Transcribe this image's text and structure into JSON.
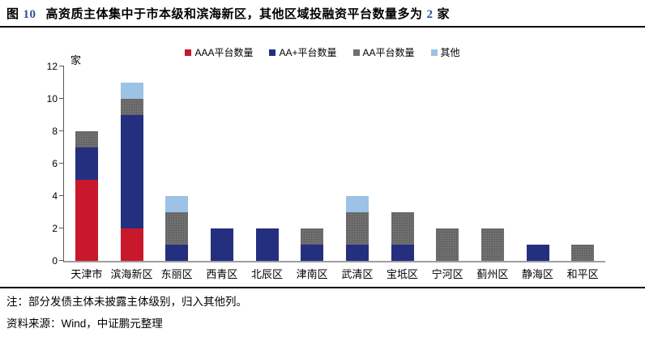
{
  "title": {
    "figure_prefix": "图",
    "figure_number": "10",
    "text": "高资质主体集中于市本级和滨海新区，其他区域投融资平台数量多为",
    "count_number": "2",
    "count_unit": "家"
  },
  "chart_data": {
    "type": "bar",
    "stacked": true,
    "title": "",
    "xlabel": "",
    "ylabel": "家",
    "ylim": [
      0,
      12
    ],
    "ytick_step": 2,
    "grid": false,
    "legend_position": "top",
    "categories": [
      "天津市",
      "滨海新区",
      "东丽区",
      "西青区",
      "北辰区",
      "津南区",
      "武清区",
      "宝坻区",
      "宁河区",
      "蓟州区",
      "静海区",
      "和平区"
    ],
    "series": [
      {
        "name": "AAA平台数量",
        "color": "#C9182B",
        "textured": false,
        "values": [
          5,
          2,
          0,
          0,
          0,
          0,
          0,
          0,
          0,
          0,
          0,
          0
        ]
      },
      {
        "name": "AA+平台数量",
        "color": "#252F80",
        "textured": false,
        "values": [
          2,
          7,
          1,
          2,
          2,
          1,
          1,
          1,
          0,
          0,
          1,
          0
        ]
      },
      {
        "name": "AA平台数量",
        "color": "#6F6F6F",
        "textured": true,
        "values": [
          1,
          1,
          2,
          0,
          0,
          1,
          2,
          2,
          2,
          2,
          0,
          1
        ]
      },
      {
        "name": "其他",
        "color": "#9CC2E5",
        "textured": false,
        "values": [
          0,
          1,
          1,
          0,
          0,
          0,
          1,
          0,
          0,
          0,
          0,
          0
        ]
      }
    ],
    "totals": [
      8,
      11,
      4,
      2,
      2,
      2,
      4,
      3,
      2,
      2,
      1,
      1
    ]
  },
  "notes": {
    "note": "注：部分发债主体未披露主体级别，归入其他列。",
    "source": "资料来源：Wind，中证鹏元整理"
  }
}
